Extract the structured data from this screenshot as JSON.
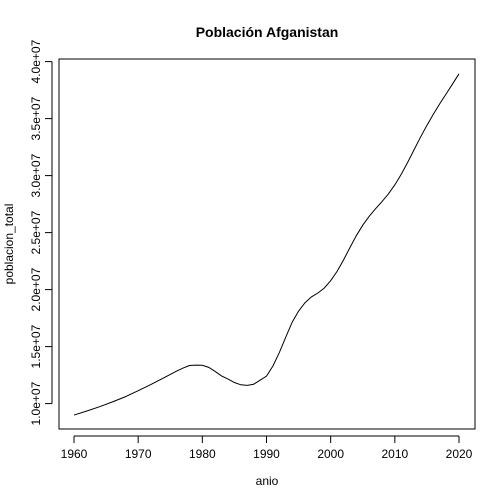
{
  "chart_data": {
    "type": "line",
    "title": "Población Afganistan",
    "xlabel": "anio",
    "ylabel": "poblacion_total",
    "xlim": [
      1960,
      2020
    ],
    "ylim": [
      9000000,
      39000000
    ],
    "x_ticks": [
      1960,
      1970,
      1980,
      1990,
      2000,
      2010,
      2020
    ],
    "x_tick_labels": [
      "1960",
      "1970",
      "1980",
      "1990",
      "2000",
      "2010",
      "2020"
    ],
    "y_ticks": [
      10000000,
      15000000,
      20000000,
      25000000,
      30000000,
      35000000,
      40000000
    ],
    "y_tick_labels": [
      "1.0e+07",
      "1.5e+07",
      "2.0e+07",
      "2.5e+07",
      "3.0e+07",
      "3.5e+07",
      "4.0e+07"
    ],
    "grid": false,
    "series": [
      {
        "x": [
          1960,
          1962,
          1964,
          1966,
          1968,
          1970,
          1972,
          1974,
          1976,
          1977,
          1978,
          1979,
          1980,
          1981,
          1982,
          1983,
          1984,
          1985,
          1986,
          1987,
          1988,
          1989,
          1990,
          1991,
          1992,
          1993,
          1994,
          1995,
          1996,
          1997,
          1998,
          1999,
          2000,
          2001,
          2002,
          2003,
          2004,
          2005,
          2006,
          2007,
          2008,
          2009,
          2010,
          2011,
          2012,
          2013,
          2014,
          2015,
          2016,
          2017,
          2018,
          2019,
          2020
        ],
        "y": [
          8996000,
          9350000,
          9730000,
          10150000,
          10600000,
          11130000,
          11680000,
          12260000,
          12850000,
          13120000,
          13340000,
          13380000,
          13360000,
          13180000,
          12820000,
          12430000,
          12150000,
          11850000,
          11650000,
          11600000,
          11700000,
          12050000,
          12410000,
          13300000,
          14480000,
          15830000,
          17140000,
          18110000,
          18850000,
          19360000,
          19700000,
          20130000,
          20780000,
          21600000,
          22600000,
          23680000,
          24730000,
          25650000,
          26430000,
          27100000,
          27720000,
          28390000,
          29190000,
          30120000,
          31160000,
          32270000,
          33370000,
          34410000,
          35380000,
          36300000,
          37170000,
          38040000,
          38930000
        ]
      }
    ]
  }
}
